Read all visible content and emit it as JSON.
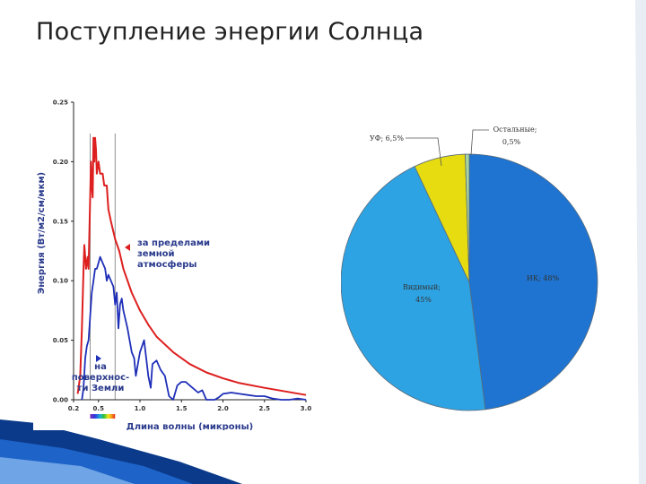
{
  "title": "Поступление энергии Солнца",
  "chart_data": [
    {
      "type": "line",
      "title": "",
      "xlabel": "Длина волны (микроны)",
      "ylabel": "Энергия (Вт/м2/см/мкм)",
      "xlim": [
        0.2,
        3.0
      ],
      "ylim": [
        0.0,
        0.25
      ],
      "x_ticks": [
        "0.2",
        "0.5",
        "1.0",
        "1.5",
        "2.0",
        "2.5",
        "3.0"
      ],
      "y_ticks": [
        "0.00",
        "0.05",
        "0.10",
        "0.15",
        "0.20",
        "0.25"
      ],
      "grid": false,
      "series": [
        {
          "name": "за пределами земной атмосферы",
          "color": "#dd1f1f",
          "x": [
            0.25,
            0.28,
            0.3,
            0.32,
            0.33,
            0.35,
            0.37,
            0.38,
            0.4,
            0.41,
            0.42,
            0.43,
            0.44,
            0.45,
            0.46,
            0.47,
            0.48,
            0.5,
            0.52,
            0.55,
            0.57,
            0.6,
            0.62,
            0.65,
            0.7,
            0.75,
            0.8,
            0.9,
            1.0,
            1.1,
            1.2,
            1.4,
            1.6,
            1.8,
            2.0,
            2.2,
            2.5,
            3.0
          ],
          "y": [
            0.005,
            0.02,
            0.06,
            0.11,
            0.13,
            0.11,
            0.12,
            0.11,
            0.17,
            0.2,
            0.18,
            0.17,
            0.22,
            0.2,
            0.22,
            0.21,
            0.19,
            0.2,
            0.19,
            0.19,
            0.18,
            0.18,
            0.16,
            0.15,
            0.135,
            0.125,
            0.11,
            0.09,
            0.075,
            0.063,
            0.053,
            0.04,
            0.03,
            0.023,
            0.018,
            0.014,
            0.01,
            0.004
          ]
        },
        {
          "name": "на поверхности Земли",
          "color": "#1f2fb8",
          "x": [
            0.3,
            0.32,
            0.34,
            0.36,
            0.38,
            0.4,
            0.42,
            0.44,
            0.46,
            0.48,
            0.5,
            0.52,
            0.55,
            0.58,
            0.6,
            0.62,
            0.65,
            0.68,
            0.7,
            0.72,
            0.74,
            0.76,
            0.78,
            0.8,
            0.85,
            0.9,
            0.93,
            0.95,
            1.0,
            1.05,
            1.1,
            1.13,
            1.15,
            1.2,
            1.25,
            1.3,
            1.35,
            1.4,
            1.45,
            1.5,
            1.55,
            1.6,
            1.7,
            1.75,
            1.8,
            1.85,
            1.9,
            1.95,
            2.0,
            2.1,
            2.2,
            2.3,
            2.4,
            2.5,
            2.6,
            2.7,
            2.8,
            2.9,
            3.0
          ],
          "y": [
            0.0,
            0.01,
            0.035,
            0.045,
            0.05,
            0.07,
            0.09,
            0.1,
            0.11,
            0.11,
            0.115,
            0.12,
            0.115,
            0.11,
            0.1,
            0.105,
            0.1,
            0.095,
            0.08,
            0.09,
            0.06,
            0.08,
            0.085,
            0.075,
            0.06,
            0.04,
            0.035,
            0.02,
            0.04,
            0.05,
            0.02,
            0.01,
            0.03,
            0.033,
            0.025,
            0.02,
            0.003,
            0.0,
            0.012,
            0.015,
            0.015,
            0.012,
            0.006,
            0.008,
            0.0,
            0.0,
            0.0,
            0.002,
            0.005,
            0.006,
            0.005,
            0.004,
            0.003,
            0.003,
            0.001,
            0.0,
            0.0,
            0.001,
            0.0
          ]
        }
      ],
      "annotations": [
        {
          "lines": [
            "за пределами",
            "земной",
            "атмосферы"
          ],
          "color": "#2a3a8c",
          "marker_color": "#dd1f1f"
        },
        {
          "lines": [
            "на",
            "поверхнос-",
            "ти Земли"
          ],
          "color": "#2a3a8c",
          "marker_color": "#1f2fb8"
        }
      ],
      "visible_band": {
        "x": [
          0.4,
          0.7
        ]
      }
    },
    {
      "type": "pie",
      "slices": [
        {
          "label": "ИК; 48%",
          "value": 48,
          "color": "#1e74d0"
        },
        {
          "label": "Видимый; 45%",
          "value": 45,
          "color": "#2da3e3"
        },
        {
          "label": "УФ; 6,5%",
          "value": 6.5,
          "color": "#e6dc10"
        },
        {
          "label": "Остальные; 0,5%",
          "value": 0.5,
          "color": "#a8d4a0"
        }
      ],
      "label_positions": [
        "inside",
        "inside",
        "outside-top-left",
        "outside-top-right"
      ]
    }
  ],
  "colors": {
    "accent": "#1e63c8",
    "dark_accent": "#0b3a8a"
  }
}
